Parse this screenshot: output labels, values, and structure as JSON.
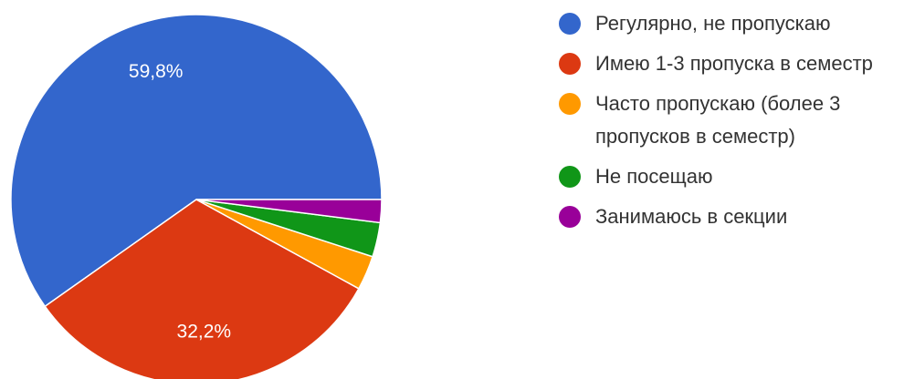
{
  "chart_data": {
    "type": "pie",
    "start_angle_deg": 0,
    "direction": "counterclockwise",
    "slices": [
      {
        "label": "Регулярно, не пропускаю",
        "value": 59.8,
        "value_label": "59,8%",
        "color": "#3366cc"
      },
      {
        "label": "Имею 1-3 пропуска в семестр",
        "value": 32.2,
        "value_label": "32,2%",
        "color": "#dc3912"
      },
      {
        "label": "Часто пропускаю (более 3 пропусков в семестр)",
        "value": 3.0,
        "value_label": "",
        "color": "#ff9900"
      },
      {
        "label": "Не посещаю",
        "value": 3.0,
        "value_label": "",
        "color": "#109618"
      },
      {
        "label": "Занимаюсь в секции",
        "value": 2.0,
        "value_label": "",
        "color": "#990099"
      }
    ],
    "legend_position": "right"
  }
}
